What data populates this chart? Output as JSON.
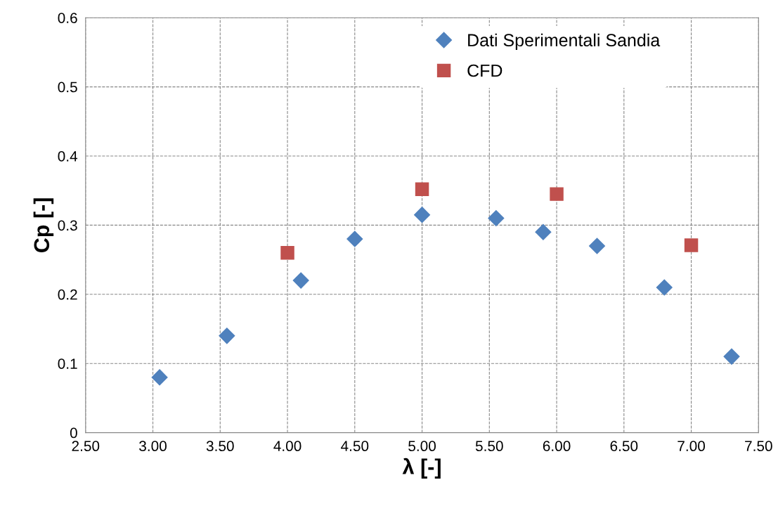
{
  "chart_data": {
    "type": "scatter",
    "xlabel": "λ [-]",
    "ylabel": "Cp [-]",
    "xlim": [
      2.5,
      7.5
    ],
    "xticks": [
      {
        "value": 2.5,
        "label": "2.50"
      },
      {
        "value": 3.0,
        "label": "3.00"
      },
      {
        "value": 3.5,
        "label": "3.50"
      },
      {
        "value": 4.0,
        "label": "4.00"
      },
      {
        "value": 4.5,
        "label": "4.50"
      },
      {
        "value": 5.0,
        "label": "5.00"
      },
      {
        "value": 5.5,
        "label": "5.50"
      },
      {
        "value": 6.0,
        "label": "6.00"
      },
      {
        "value": 6.5,
        "label": "6.50"
      },
      {
        "value": 7.0,
        "label": "7.00"
      },
      {
        "value": 7.5,
        "label": "7.50"
      }
    ],
    "ylim": [
      0,
      0.6
    ],
    "yticks": [
      0,
      0.1,
      0.2,
      0.3,
      0.4,
      0.5,
      0.6
    ],
    "grid": true,
    "legend": "top",
    "line_style": "dashed",
    "series": [
      {
        "name": "Dati Sperimentali Sandia",
        "color": "#4f81bd",
        "marker": "diamond",
        "x": [
          3.05,
          3.55,
          4.1,
          4.5,
          5.0,
          5.55,
          5.9,
          6.3,
          6.8,
          7.3
        ],
        "values": [
          0.08,
          0.14,
          0.22,
          0.28,
          0.315,
          0.31,
          0.29,
          0.27,
          0.21,
          0.11
        ]
      },
      {
        "name": "CFD",
        "color": "#c0504d",
        "marker": "square",
        "x": [
          4.0,
          5.0,
          6.0,
          7.0
        ],
        "values": [
          0.26,
          0.352,
          0.345,
          0.271
        ]
      }
    ]
  }
}
